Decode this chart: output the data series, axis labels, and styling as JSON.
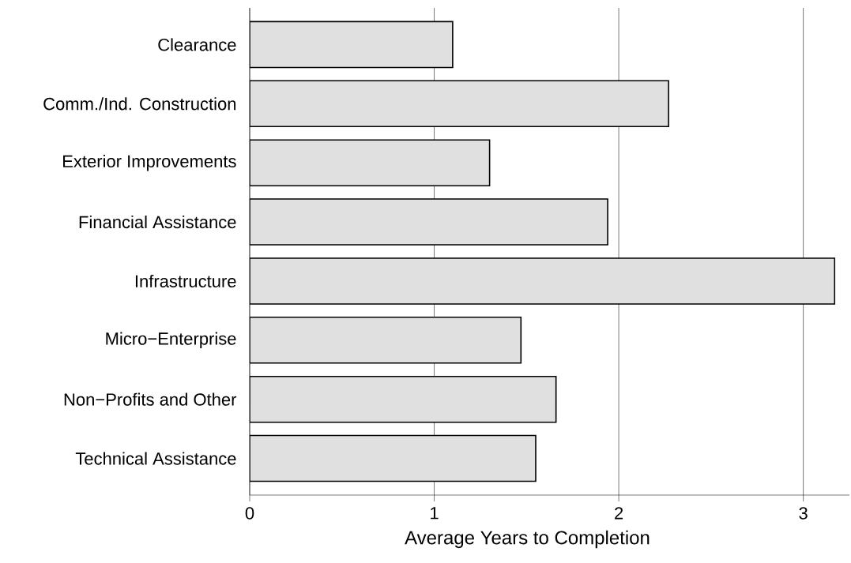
{
  "chart_data": {
    "type": "bar",
    "orientation": "horizontal",
    "xlabel": "Average Years to Completion",
    "categories": [
      "Clearance",
      "Comm./Ind. Construction",
      "Exterior Improvements",
      "Financial Assistance",
      "Infrastructure",
      "Micro−Enterprise",
      "Non−Profits and Other",
      "Technical Assistance"
    ],
    "values": [
      1.1,
      2.27,
      1.3,
      1.94,
      3.17,
      1.47,
      1.66,
      1.55
    ],
    "color": "#e0e0e0",
    "xlim": [
      0,
      3.25
    ],
    "xticks": [
      0,
      1,
      2,
      3
    ],
    "grid": "x"
  }
}
